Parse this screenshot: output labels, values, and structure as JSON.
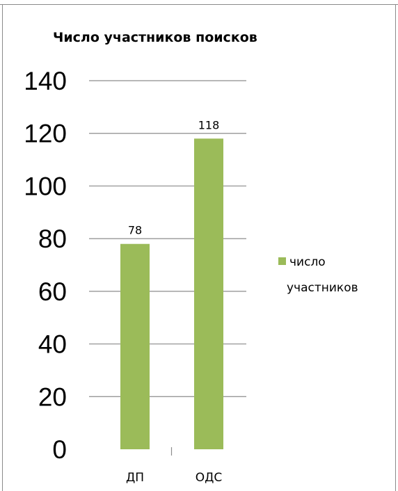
{
  "chart_data": {
    "type": "bar",
    "title": "Число участников поисков",
    "categories": [
      "ДП",
      "ОДС"
    ],
    "series": [
      {
        "name": "число участников",
        "values": [
          78,
          118
        ],
        "color": "#9bbb59"
      }
    ],
    "data_labels": [
      "78",
      "118"
    ],
    "ylim": [
      0,
      140
    ],
    "yticks": [
      0,
      20,
      40,
      60,
      80,
      100,
      120,
      140
    ],
    "ytick_labels": [
      "0",
      "20",
      "40",
      "60",
      "80",
      "100",
      "120",
      "140"
    ],
    "grid": true,
    "legend": {
      "position": "right",
      "lines": [
        "число",
        "участников"
      ]
    }
  }
}
